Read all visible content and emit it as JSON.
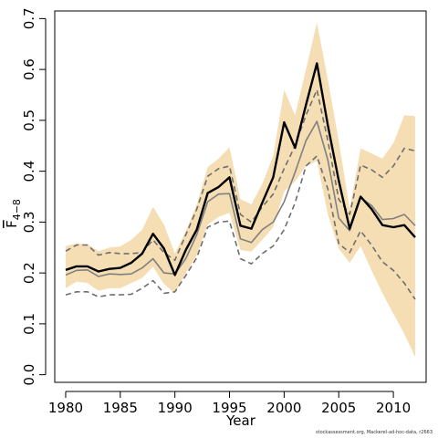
{
  "chart_data": {
    "type": "line",
    "xlabel": "Year",
    "ylabel_main": "F",
    "ylabel_sub": "4−8",
    "xlim": [
      1979,
      2013
    ],
    "ylim": [
      -0.015,
      0.715
    ],
    "x_ticks": [
      1980,
      1985,
      1990,
      1995,
      2000,
      2005,
      2010
    ],
    "y_ticks": [
      0.0,
      0.1,
      0.2,
      0.3,
      0.4,
      0.5,
      0.6,
      0.7
    ],
    "y_tick_labels": [
      "0.0",
      "0.1",
      "0.2",
      "0.3",
      "0.4",
      "0.5",
      "0.6",
      "0.7"
    ],
    "x": [
      1980,
      1981,
      1982,
      1983,
      1984,
      1985,
      1986,
      1987,
      1988,
      1989,
      1990,
      1991,
      1992,
      1993,
      1994,
      1995,
      1996,
      1997,
      1998,
      1999,
      2000,
      2001,
      2002,
      2003,
      2004,
      2005,
      2006,
      2007,
      2008,
      2009,
      2010,
      2011,
      2012
    ],
    "band": {
      "color": "#f5deb3",
      "upper": [
        0.253,
        0.258,
        0.256,
        0.243,
        0.25,
        0.252,
        0.265,
        0.285,
        0.33,
        0.295,
        0.238,
        0.282,
        0.335,
        0.408,
        0.425,
        0.447,
        0.345,
        0.335,
        0.375,
        0.43,
        0.56,
        0.51,
        0.6,
        0.692,
        0.58,
        0.46,
        0.325,
        0.445,
        0.435,
        0.425,
        0.455,
        0.51,
        0.508
      ],
      "lower": [
        0.17,
        0.183,
        0.18,
        0.165,
        0.17,
        0.17,
        0.18,
        0.19,
        0.212,
        0.178,
        0.16,
        0.2,
        0.235,
        0.295,
        0.31,
        0.318,
        0.245,
        0.242,
        0.265,
        0.29,
        0.36,
        0.38,
        0.41,
        0.42,
        0.315,
        0.248,
        0.22,
        0.253,
        0.205,
        0.16,
        0.12,
        0.08,
        0.035
      ]
    },
    "series": [
      {
        "values": [
          0.206,
          0.213,
          0.213,
          0.203,
          0.208,
          0.21,
          0.22,
          0.238,
          0.277,
          0.248,
          0.196,
          0.245,
          0.285,
          0.357,
          0.369,
          0.388,
          0.293,
          0.287,
          0.338,
          0.388,
          0.496,
          0.446,
          0.53,
          0.612,
          0.49,
          0.382,
          0.287,
          0.35,
          0.326,
          0.294,
          0.29,
          0.294,
          0.27
        ],
        "color": "#000000",
        "width": 2.4,
        "dash": ""
      },
      {
        "values": [
          0.196,
          0.205,
          0.206,
          0.193,
          0.198,
          0.197,
          0.198,
          0.21,
          0.228,
          0.2,
          0.198,
          0.228,
          0.275,
          0.34,
          0.355,
          0.356,
          0.267,
          0.26,
          0.285,
          0.3,
          0.34,
          0.398,
          0.46,
          0.498,
          0.422,
          0.308,
          0.283,
          0.348,
          0.333,
          0.305,
          0.307,
          0.315,
          0.293
        ],
        "color": "#808080",
        "width": 1.6,
        "dash": ""
      },
      {
        "values": [
          0.243,
          0.255,
          0.255,
          0.235,
          0.24,
          0.238,
          0.238,
          0.24,
          0.265,
          0.24,
          0.225,
          0.275,
          0.325,
          0.39,
          0.405,
          0.41,
          0.315,
          0.3,
          0.33,
          0.355,
          0.405,
          0.45,
          0.51,
          0.56,
          0.46,
          0.345,
          0.315,
          0.412,
          0.403,
          0.388,
          0.41,
          0.445,
          0.44
        ],
        "color": "#6e6e6e",
        "width": 1.6,
        "dash": "6,4"
      },
      {
        "values": [
          0.157,
          0.163,
          0.163,
          0.153,
          0.157,
          0.157,
          0.158,
          0.17,
          0.185,
          0.16,
          0.163,
          0.195,
          0.23,
          0.29,
          0.3,
          0.302,
          0.228,
          0.218,
          0.238,
          0.253,
          0.285,
          0.338,
          0.41,
          0.43,
          0.365,
          0.258,
          0.24,
          0.283,
          0.255,
          0.222,
          0.205,
          0.18,
          0.148
        ],
        "color": "#6e6e6e",
        "width": 1.6,
        "dash": "6,4"
      }
    ]
  },
  "credit": "stockassessment.org, Mackerel-ad-hoc-data, r2663"
}
